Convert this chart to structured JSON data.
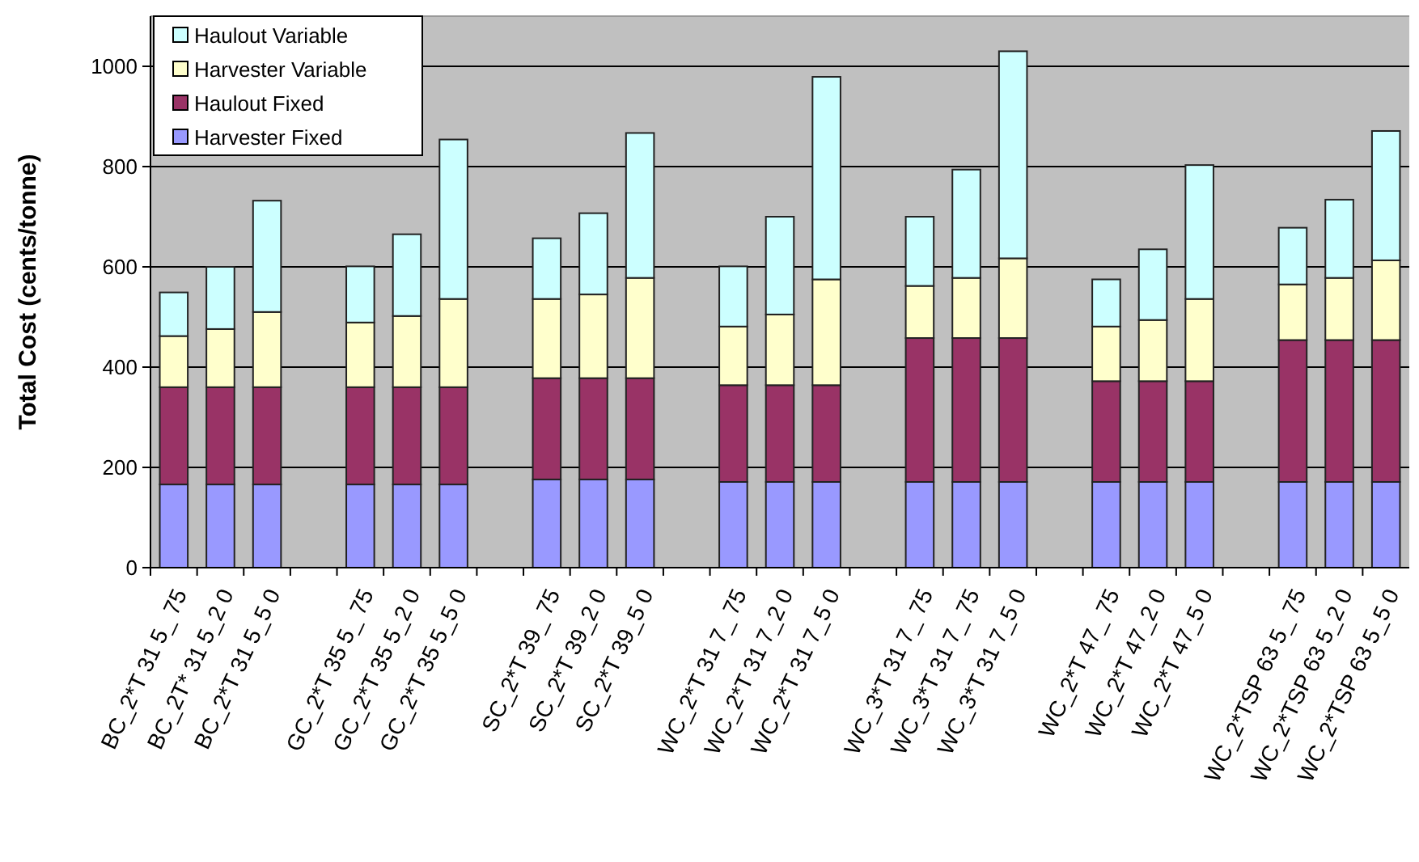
{
  "chart_data": {
    "type": "bar",
    "stacked": true,
    "ylabel": "Total Cost (cents/tonne)",
    "categories": [
      "BC_2*T 31 5_ 75",
      "BC_2T* 31 5_2 0",
      "BC_2*T 31 5_5 0",
      null,
      "GC_2*T 35 5_ 75",
      "GC_2*T 35 5_2 0",
      "GC_2*T 35 5_5 0",
      null,
      "SC_2*T 39_ 75",
      "SC_2*T 39_2 0",
      "SC_2*T 39_5 0",
      null,
      "WC_2*T 31 7_ 75",
      "WC_2*T 31 7_2 0",
      "WC_2*T 31 7_5 0",
      null,
      "WC_3*T 31 7_ 75",
      "WC_3*T 31 7_ 75",
      "WC_3*T 31 7_5 0",
      null,
      "WC_2*T 47_ 75",
      "WC_2*T 47_2 0",
      "WC_2*T 47_5 0",
      null,
      "WC_2*TSP 63 5_ 75",
      "WC_2*TSP 63 5_2 0",
      "WC_2*TSP 63 5_5 0"
    ],
    "series": [
      {
        "name": "Harvester Fixed",
        "color": "#9999ff",
        "values": [
          166,
          166,
          166,
          null,
          166,
          166,
          166,
          null,
          176,
          176,
          176,
          null,
          171,
          171,
          171,
          null,
          171,
          171,
          171,
          null,
          171,
          171,
          171,
          null,
          171,
          171,
          171
        ]
      },
      {
        "name": "Haulout Fixed",
        "color": "#993366",
        "values": [
          194,
          194,
          194,
          null,
          194,
          194,
          194,
          null,
          202,
          202,
          202,
          null,
          193,
          193,
          193,
          null,
          287,
          287,
          287,
          null,
          201,
          201,
          201,
          null,
          283,
          283,
          283
        ]
      },
      {
        "name": "Harvester Variable",
        "color": "#ffffcc",
        "values": [
          102,
          116,
          150,
          null,
          129,
          142,
          176,
          null,
          158,
          167,
          200,
          null,
          117,
          141,
          211,
          null,
          104,
          120,
          159,
          null,
          109,
          122,
          164,
          null,
          111,
          124,
          159
        ]
      },
      {
        "name": "Haulout Variable",
        "color": "#ccffff",
        "values": [
          87,
          124,
          222,
          null,
          112,
          163,
          318,
          null,
          121,
          162,
          289,
          null,
          120,
          195,
          404,
          null,
          138,
          216,
          413,
          null,
          94,
          141,
          267,
          null,
          113,
          156,
          258
        ]
      }
    ],
    "ylim": [
      0,
      1100
    ],
    "yticks": [
      0,
      200,
      400,
      600,
      800,
      1000
    ],
    "grid": "y",
    "legend": "top left"
  }
}
